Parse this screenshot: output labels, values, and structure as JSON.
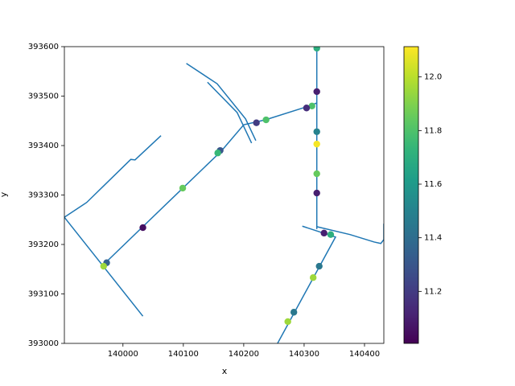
{
  "chart_data": {
    "type": "network-scatter",
    "xlabel": "x",
    "ylabel": "y",
    "xlim": [
      139903,
      140432
    ],
    "ylim": [
      393000,
      393600
    ],
    "xticks": [
      140000,
      140100,
      140200,
      140300,
      140400
    ],
    "yticks": [
      393000,
      393100,
      393200,
      393300,
      393400,
      393500,
      393600
    ],
    "line_color": "#1f77b4",
    "colormap": "viridis",
    "clim": [
      11.006,
      12.113
    ],
    "cticks": [
      11.2,
      11.4,
      11.6,
      11.8,
      {
        "value": 12,
        "label": "12.0"
      }
    ],
    "lines": [
      {
        "x": [
          139971,
          140100,
          140163,
          140200,
          140236,
          140303,
          140321
        ],
        "y": [
          393163,
          393315,
          393389,
          393442,
          393452,
          393478,
          393486
        ]
      },
      {
        "x": [
          140321,
          140321
        ],
        "y": [
          393600,
          393231
        ]
      },
      {
        "x": [
          140321,
          140376,
          140416,
          140427,
          140432,
          140432
        ],
        "y": [
          393236,
          393220,
          393205,
          393202,
          393210,
          393242
        ]
      },
      {
        "x": [
          140297,
          140352,
          140256
        ],
        "y": [
          393237,
          393215,
          393000
        ]
      },
      {
        "x": [
          139903,
          139940,
          140013,
          140020,
          140063
        ],
        "y": [
          393255,
          393285,
          393372,
          393371,
          393420
        ]
      },
      {
        "x": [
          139903,
          140033
        ],
        "y": [
          393255,
          393055
        ]
      },
      {
        "x": [
          140105,
          140156,
          140203,
          140220
        ],
        "y": [
          393566,
          393525,
          393454,
          393410
        ]
      },
      {
        "x": [
          140140,
          140189,
          140213
        ],
        "y": [
          393528,
          393467,
          393405
        ]
      }
    ],
    "points": {
      "x": [
        140321,
        140321,
        140321,
        140321,
        140321,
        140321,
        140313,
        140304,
        140237,
        140221,
        140161,
        140157,
        140099,
        140033,
        139973,
        139968,
        140333,
        140344,
        140325,
        140315,
        140283,
        140273
      ],
      "y": [
        393597,
        393509,
        393428,
        393403,
        393343,
        393304,
        393480,
        393476,
        393452,
        393446,
        393390,
        393385,
        393314,
        393234,
        393163,
        393156,
        393223,
        393220,
        393156,
        393133,
        393063,
        393044
      ],
      "c": [
        11.7,
        11.1,
        11.5,
        12.1,
        11.85,
        11.1,
        11.8,
        11.15,
        11.8,
        11.2,
        11.3,
        11.75,
        11.85,
        11.05,
        11.35,
        11.95,
        11.1,
        11.7,
        11.45,
        11.95,
        11.45,
        11.95
      ]
    }
  }
}
